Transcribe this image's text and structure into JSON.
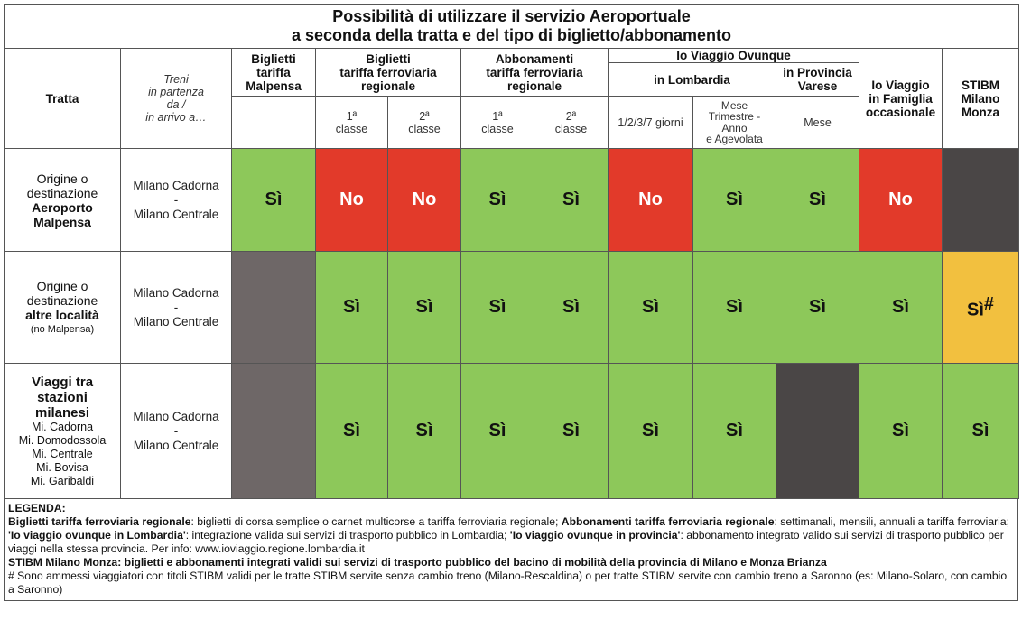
{
  "title": {
    "line1": "Possibilità di utilizzare il servizio Aeroportuale",
    "line2": "a seconda della tratta e del tipo di biglietto/abbonamento"
  },
  "headers": {
    "tratta": "Tratta",
    "treni_line1": "Treni",
    "treni_line2": "in partenza",
    "treni_line3": "da /",
    "treni_line4": "in arrivo a…",
    "malpensa_line1": "Biglietti",
    "malpensa_line2": "tariffa",
    "malpensa_line3": "Malpensa",
    "biglietti_line1": "Biglietti",
    "biglietti_line2": "tariffa ferroviaria",
    "biglietti_line3": "regionale",
    "abbonamenti_line1": "Abbonamenti",
    "abbonamenti_line2": "tariffa ferroviaria",
    "abbonamenti_line3": "regionale",
    "ovunque": "Io Viaggio Ovunque",
    "lombardia": "in Lombardia",
    "provincia_line1": "in Provincia",
    "provincia_line2": "Varese",
    "famiglia_line1": "Io Viaggio",
    "famiglia_line2": "in Famiglia",
    "famiglia_line3": "occasionale",
    "stibm_line1": "STIBM",
    "stibm_line2": "Milano",
    "stibm_line3": "Monza",
    "classe1_num": "1ª",
    "classe2_num": "2ª",
    "classe_word": "classe",
    "giorni": "1/2/3/7 giorni",
    "mese_line1": "Mese",
    "mese_line2": "Trimestre -",
    "mese_line3": "Anno",
    "mese_line4": "e Agevolata",
    "mese_prov": "Mese"
  },
  "rows": [
    {
      "tratta_line1": "Origine o",
      "tratta_line2": "destinazione",
      "tratta_bold1": "Aeroporto",
      "tratta_bold2": "Malpensa",
      "treni_line1": "Milano Cadorna",
      "treni_line2": "-",
      "treni_line3": "Milano Centrale",
      "cells": [
        "Sì",
        "No",
        "No",
        "Sì",
        "Sì",
        "No",
        "Sì",
        "Sì",
        "No",
        ""
      ]
    },
    {
      "tratta_line1": "Origine o",
      "tratta_line2": "destinazione",
      "tratta_bold1": "altre località",
      "tratta_small": "(no Malpensa)",
      "treni_line1": "Milano Cadorna",
      "treni_line2": "-",
      "treni_line3": "Milano Centrale",
      "cells": [
        "",
        "Sì",
        "Sì",
        "Sì",
        "Sì",
        "Sì",
        "Sì",
        "Sì",
        "Sì",
        "Sì"
      ],
      "stibm_sup": "#"
    },
    {
      "tratta_bold1": "Viaggi tra",
      "tratta_bold2": "stazioni",
      "tratta_bold3": "milanesi",
      "stations": [
        "Mi. Cadorna",
        "Mi. Domodossola",
        "Mi. Centrale",
        "Mi. Bovisa",
        "Mi. Garibaldi"
      ],
      "treni_line1": "Milano Cadorna",
      "treni_line2": "-",
      "treni_line3": "Milano Centrale",
      "cells": [
        "",
        "Sì",
        "Sì",
        "Sì",
        "Sì",
        "Sì",
        "Sì",
        "",
        "Sì",
        "Sì"
      ]
    }
  ],
  "legend": {
    "heading": "LEGENDA:",
    "l1_b1": "Biglietti tariffa ferroviaria regionale",
    "l1_t1": ": biglietti di corsa semplice o carnet multicorse a tariffa ferroviaria regionale; ",
    "l1_b2": "Abbonamenti tariffa ferroviaria regionale",
    "l1_t2": ": settimanali, mensili, annuali a tariffa ferroviaria;",
    "l2_b1": "'Io viaggio ovunque in Lombardia'",
    "l2_t1": ": integrazione valida sui servizi di trasporto pubblico in Lombardia; ",
    "l2_b2": "'Io viaggio ovunque in provincia'",
    "l2_t2": ": abbonamento integrato valido sui servizi di trasporto pubblico per viaggi nella stessa provincia. Per info: www.ioviaggio.regione.lombardia.it",
    "l3": "STIBM Milano Monza: biglietti e abbonamenti integrati validi sui servizi di trasporto pubblico del bacino di mobilità della provincia di Milano e Monza Brianza",
    "l4": "# Sono ammessi viaggiatori con titoli STIBM validi per le tratte STIBM servite senza cambio treno (Milano-Rescaldina) o per tratte STIBM servite con cambio treno a Saronno (es: Milano-Solaro, con cambio a Saronno)"
  },
  "colors": {
    "yes": "#8dc85a",
    "no": "#e23a2a",
    "not_applicable": "#6e6767",
    "not_applicable_dark": "#4a4646",
    "conditional": "#f2c03f"
  }
}
